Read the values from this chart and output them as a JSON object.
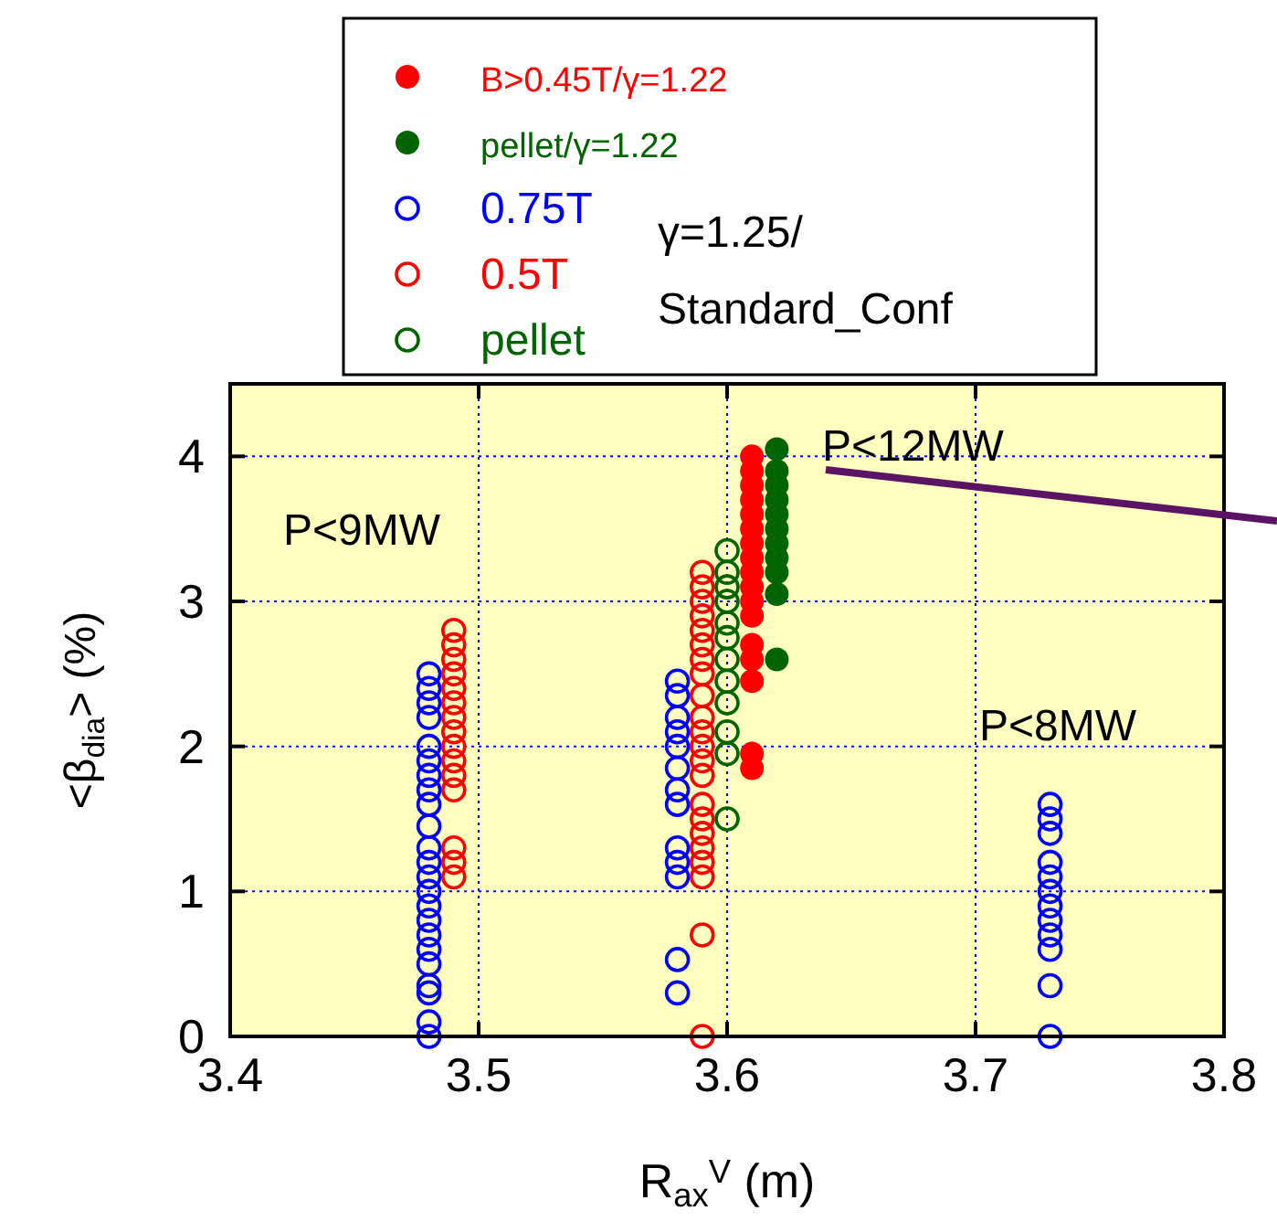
{
  "chart_data": {
    "type": "scatter",
    "xlabel": "R$_{ax}$$^{V}$ (m)",
    "ylabel": "<β$_{dia}$> (%)",
    "xlim": [
      3.4,
      3.8
    ],
    "ylim": [
      0,
      4.5
    ],
    "xticks": [
      3.4,
      3.5,
      3.6,
      3.7,
      3.8
    ],
    "yticks": [
      0,
      1,
      2,
      3,
      4
    ],
    "grid": true,
    "legend": "top",
    "marker": "circle",
    "annotations": [
      "γ=1.25/",
      "Standard_Conf",
      "P<9MW",
      "P<12MW",
      "P<8MW"
    ],
    "series": [
      {
        "name": "B>0.45T/γ=1.22",
        "color": "#ff0000",
        "marker": "circle",
        "x": [
          3.61,
          3.61,
          3.61,
          3.61,
          3.61,
          3.61,
          3.61,
          3.61,
          3.61,
          3.61,
          3.61,
          3.61,
          3.61,
          3.61,
          3.61,
          3.61,
          3.61
        ],
        "values": [
          1.85,
          1.95,
          2.45,
          2.6,
          2.7,
          2.9,
          3.0,
          3.1,
          3.2,
          3.3,
          3.4,
          3.5,
          3.6,
          3.7,
          3.8,
          3.9,
          4.0
        ]
      },
      {
        "name": "pellet/γ=1.22",
        "color": "#006400",
        "marker": "circle",
        "x": [
          3.62,
          3.62,
          3.62,
          3.62,
          3.62,
          3.62,
          3.62,
          3.62,
          3.62,
          3.62,
          3.62
        ],
        "values": [
          2.6,
          3.05,
          3.2,
          3.3,
          3.4,
          3.5,
          3.6,
          3.7,
          3.8,
          3.9,
          4.05
        ]
      },
      {
        "name": "0.75T",
        "color": "#0000ff",
        "x": [
          3.48,
          3.48,
          3.48,
          3.48,
          3.48,
          3.48,
          3.48,
          3.48,
          3.48,
          3.48,
          3.48,
          3.48,
          3.48,
          3.48,
          3.48,
          3.48,
          3.48,
          3.48,
          3.48,
          3.48,
          3.48,
          3.48,
          3.48,
          3.58,
          3.58,
          3.58,
          3.58,
          3.58,
          3.58,
          3.58,
          3.58,
          3.58,
          3.58,
          3.58,
          3.58,
          3.58,
          3.73,
          3.73,
          3.73,
          3.73,
          3.73,
          3.73,
          3.73,
          3.73,
          3.73,
          3.73,
          3.73,
          3.73
        ],
        "values": [
          0,
          0.1,
          0.3,
          0.35,
          0.5,
          0.6,
          0.7,
          0.8,
          0.9,
          1.0,
          1.1,
          1.2,
          1.3,
          1.45,
          1.6,
          1.7,
          1.8,
          1.9,
          2.0,
          2.2,
          2.3,
          2.4,
          2.5,
          0.3,
          0.53,
          1.1,
          1.2,
          1.3,
          1.6,
          1.7,
          1.85,
          2.0,
          2.1,
          2.2,
          2.35,
          2.45,
          0,
          0.35,
          0.6,
          0.7,
          0.8,
          0.9,
          1.0,
          1.1,
          1.2,
          1.4,
          1.5,
          1.6
        ]
      },
      {
        "name": "0.5T",
        "color": "#ff0000",
        "x": [
          3.49,
          3.49,
          3.49,
          3.49,
          3.49,
          3.49,
          3.49,
          3.49,
          3.49,
          3.49,
          3.49,
          3.49,
          3.49,
          3.49,
          3.49,
          3.59,
          3.59,
          3.59,
          3.59,
          3.59,
          3.59,
          3.59,
          3.59,
          3.59,
          3.59,
          3.59,
          3.59,
          3.59,
          3.59,
          3.59,
          3.59,
          3.59,
          3.59,
          3.59,
          3.59,
          3.59,
          3.59
        ],
        "values": [
          1.1,
          1.2,
          1.3,
          1.7,
          1.8,
          1.9,
          2.0,
          2.1,
          2.2,
          2.3,
          2.4,
          2.5,
          2.6,
          2.7,
          2.8,
          0,
          0.7,
          1.1,
          1.2,
          1.3,
          1.4,
          1.5,
          1.6,
          1.8,
          1.9,
          2.0,
          2.1,
          2.2,
          2.35,
          2.5,
          2.6,
          2.7,
          2.8,
          2.9,
          3.0,
          3.1,
          3.2
        ]
      },
      {
        "name": "pellet",
        "color": "#006400",
        "x": [
          3.6,
          3.6,
          3.6,
          3.6,
          3.6,
          3.6,
          3.6,
          3.6,
          3.6,
          3.6,
          3.6,
          3.6
        ],
        "values": [
          1.5,
          1.95,
          2.1,
          2.3,
          2.45,
          2.6,
          2.75,
          2.85,
          3.0,
          3.1,
          3.2,
          3.35
        ]
      }
    ]
  }
}
